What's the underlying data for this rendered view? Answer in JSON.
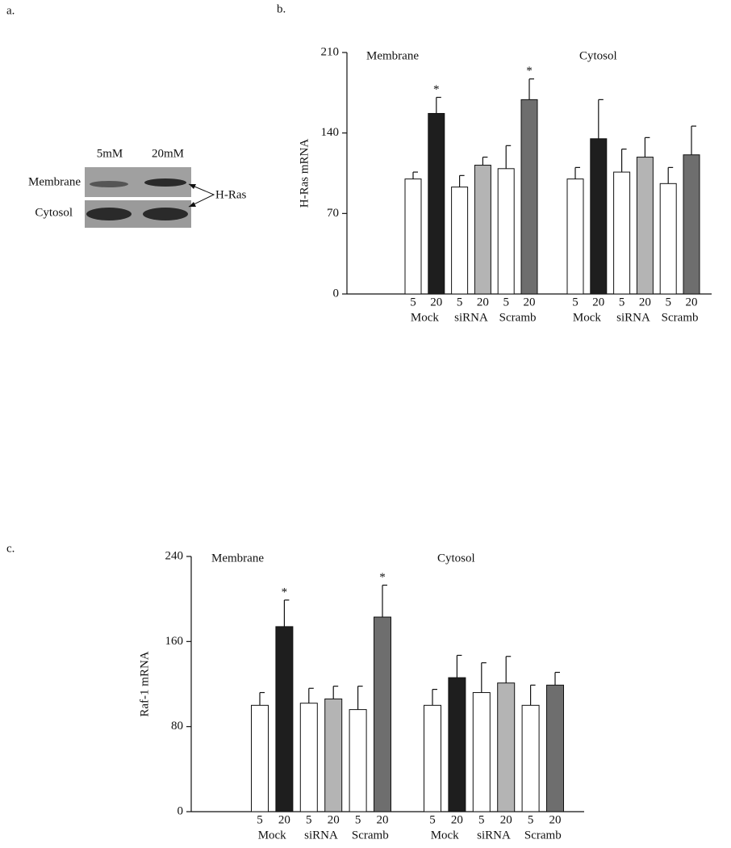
{
  "blot": {
    "panel_label": "a.",
    "lanes": [
      "5mM",
      "20mM"
    ],
    "rows": [
      "Membrane",
      "Cytosol"
    ],
    "target": "H-Ras"
  },
  "chart_data": [
    {
      "type": "bar",
      "panel_label": "b.",
      "y_label": "H-Ras mRNA",
      "sections": [
        "Membrane",
        "Cytosol"
      ],
      "categories": [
        "5",
        "20",
        "5",
        "20",
        "5",
        "20",
        "5",
        "20",
        "5",
        "20",
        "5",
        "20"
      ],
      "groups": [
        "Mock",
        "siRNA",
        "Scramb",
        "Mock",
        "siRNA",
        "Scramb"
      ],
      "values": [
        100,
        157,
        93,
        112,
        109,
        169,
        100,
        135,
        106,
        119,
        96,
        121
      ],
      "errors": [
        6,
        14,
        10,
        7,
        20,
        18,
        10,
        34,
        20,
        17,
        14,
        25
      ],
      "markers": [
        null,
        "*",
        null,
        null,
        null,
        "*",
        null,
        null,
        null,
        null,
        null,
        null
      ],
      "colors": [
        "#ffffff",
        "#1e1e1e",
        "#ffffff",
        "#b4b4b4",
        "#ffffff",
        "#6e6e6e",
        "#ffffff",
        "#1e1e1e",
        "#ffffff",
        "#b4b4b4",
        "#ffffff",
        "#6e6e6e"
      ],
      "ylim": [
        0,
        210
      ],
      "yticks": [
        0,
        70,
        140,
        210
      ]
    },
    {
      "type": "bar",
      "panel_label": "c.",
      "y_label": "Raf-1 mRNA",
      "sections": [
        "Membrane",
        "Cytosol"
      ],
      "categories": [
        "5",
        "20",
        "5",
        "20",
        "5",
        "20",
        "5",
        "20",
        "5",
        "20",
        "5",
        "20"
      ],
      "groups": [
        "Mock",
        "siRNA",
        "Scramb",
        "Mock",
        "siRNA",
        "Scramb"
      ],
      "values": [
        100,
        174,
        102,
        106,
        96,
        183,
        100,
        126,
        112,
        121,
        100,
        119
      ],
      "errors": [
        12,
        25,
        14,
        12,
        22,
        30,
        15,
        21,
        28,
        25,
        19,
        12
      ],
      "markers": [
        null,
        "*",
        null,
        null,
        null,
        "*",
        null,
        null,
        null,
        null,
        null,
        null
      ],
      "colors": [
        "#ffffff",
        "#1e1e1e",
        "#ffffff",
        "#b4b4b4",
        "#ffffff",
        "#6e6e6e",
        "#ffffff",
        "#1e1e1e",
        "#ffffff",
        "#b4b4b4",
        "#ffffff",
        "#6e6e6e"
      ],
      "ylim": [
        0,
        240
      ],
      "yticks": [
        0,
        80,
        160,
        240
      ]
    }
  ]
}
